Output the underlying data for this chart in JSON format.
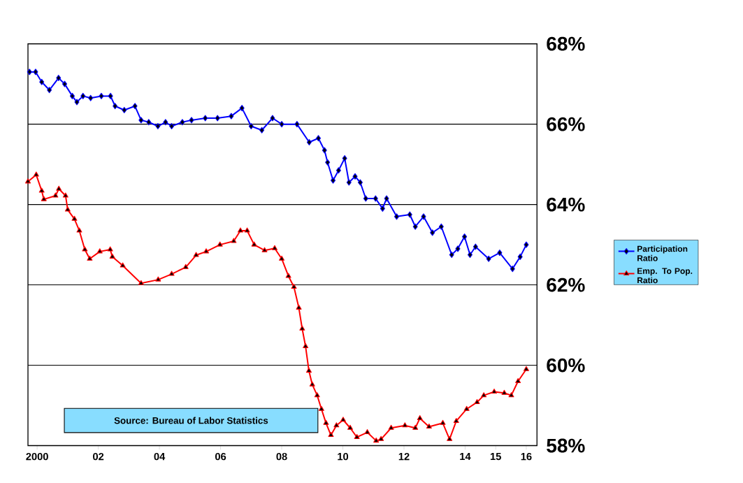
{
  "chart_data": {
    "type": "line",
    "annotations": [
      "Source: Bureau of Labor Statistics"
    ],
    "xlim": [
      1999.7,
      2016.35
    ],
    "xticks": [
      2000,
      {
        "value": 2002,
        "label": "02"
      },
      {
        "value": 2004,
        "label": "04"
      },
      {
        "value": 2006,
        "label": "06"
      },
      {
        "value": 2008,
        "label": "08"
      },
      {
        "value": 2010,
        "label": "10"
      },
      {
        "value": 2012,
        "label": "12"
      },
      {
        "value": 2014,
        "label": "14"
      },
      {
        "value": 2015,
        "label": "15"
      },
      {
        "value": 2016,
        "label": "16"
      }
    ],
    "ylim": [
      58,
      68
    ],
    "yticks": [
      {
        "value": 58,
        "label": "58%"
      },
      {
        "value": 60,
        "label": "60%"
      },
      {
        "value": 62,
        "label": "62%"
      },
      {
        "value": 64,
        "label": "64%"
      },
      {
        "value": 66,
        "label": "66%"
      },
      {
        "value": 68,
        "label": "68%"
      }
    ],
    "grid": "y",
    "legend": "right",
    "series": [
      {
        "name": "Participation Ratio",
        "color": "#0000ff",
        "marker": "diamond",
        "x": [
          1999.75,
          1999.95,
          2000.15,
          2000.4,
          2000.7,
          2000.9,
          2001.15,
          2001.3,
          2001.5,
          2001.75,
          2002.1,
          2002.4,
          2002.55,
          2002.85,
          2003.2,
          2003.4,
          2003.65,
          2003.95,
          2004.2,
          2004.4,
          2004.75,
          2005.05,
          2005.5,
          2005.9,
          2006.35,
          2006.7,
          2007.0,
          2007.35,
          2007.7,
          2008.0,
          2008.5,
          2008.9,
          2009.2,
          2009.4,
          2009.5,
          2009.68,
          2009.86,
          2010.06,
          2010.2,
          2010.4,
          2010.57,
          2010.75,
          2011.07,
          2011.3,
          2011.43,
          2011.76,
          2012.19,
          2012.37,
          2012.64,
          2012.93,
          2013.22,
          2013.56,
          2013.76,
          2013.98,
          2014.16,
          2014.34,
          2014.77,
          2015.13,
          2015.55,
          2015.8,
          2016.0
        ],
        "values": [
          67.3,
          67.3,
          67.05,
          66.85,
          67.15,
          67.0,
          66.7,
          66.55,
          66.7,
          66.65,
          66.7,
          66.7,
          66.45,
          66.35,
          66.45,
          66.1,
          66.05,
          65.95,
          66.05,
          65.95,
          66.05,
          66.1,
          66.15,
          66.15,
          66.2,
          66.4,
          65.95,
          65.85,
          66.15,
          66.0,
          66.0,
          65.55,
          65.65,
          65.35,
          65.05,
          64.6,
          64.85,
          65.15,
          64.55,
          64.7,
          64.55,
          64.15,
          64.15,
          63.9,
          64.15,
          63.7,
          63.75,
          63.45,
          63.7,
          63.3,
          63.45,
          62.75,
          62.9,
          63.2,
          62.75,
          62.95,
          62.65,
          62.8,
          62.4,
          62.7,
          63.0
        ]
      },
      {
        "name": "Emp. To Pop. Ratio",
        "color": "#ff0000",
        "marker": "triangle",
        "x": [
          1999.7,
          1999.97,
          2000.15,
          2000.22,
          2000.6,
          2000.71,
          2000.93,
          2001.0,
          2001.22,
          2001.38,
          2001.56,
          2001.72,
          2002.05,
          2002.39,
          2002.46,
          2002.8,
          2003.4,
          2003.96,
          2004.4,
          2004.86,
          2005.2,
          2005.53,
          2005.98,
          2006.43,
          2006.65,
          2006.87,
          2007.1,
          2007.44,
          2007.77,
          2008.0,
          2008.22,
          2008.4,
          2008.56,
          2008.67,
          2008.78,
          2008.89,
          2009.0,
          2009.16,
          2009.3,
          2009.45,
          2009.61,
          2009.79,
          2010.01,
          2010.24,
          2010.46,
          2010.8,
          2011.09,
          2011.25,
          2011.58,
          2012.03,
          2012.37,
          2012.52,
          2012.82,
          2013.27,
          2013.49,
          2013.71,
          2014.05,
          2014.39,
          2014.61,
          2014.95,
          2015.28,
          2015.51,
          2015.73,
          2016.0
        ],
        "values": [
          64.57,
          64.74,
          64.34,
          64.13,
          64.22,
          64.39,
          64.22,
          63.87,
          63.64,
          63.35,
          62.88,
          62.65,
          62.83,
          62.88,
          62.7,
          62.48,
          62.04,
          62.13,
          62.27,
          62.44,
          62.74,
          62.83,
          63.0,
          63.09,
          63.35,
          63.35,
          63.0,
          62.86,
          62.91,
          62.65,
          62.22,
          61.95,
          61.43,
          60.91,
          60.47,
          59.86,
          59.52,
          59.25,
          58.91,
          58.56,
          58.26,
          58.5,
          58.64,
          58.44,
          58.21,
          58.33,
          58.12,
          58.16,
          58.44,
          58.5,
          58.44,
          58.68,
          58.47,
          58.56,
          58.16,
          58.61,
          58.91,
          59.08,
          59.25,
          59.34,
          59.31,
          59.25,
          59.6,
          59.9
        ]
      }
    ]
  }
}
